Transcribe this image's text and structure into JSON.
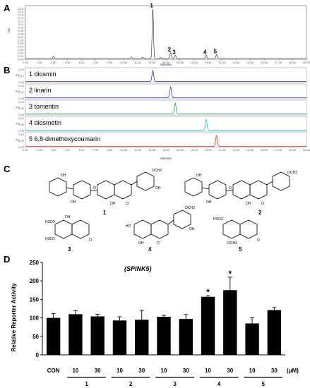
{
  "panels": {
    "a": "A",
    "b": "B",
    "c": "C",
    "d": "D"
  },
  "chromatogram": {
    "ylabel": "AU",
    "xlabel": "Minutes",
    "yticks": [
      "0.00",
      "0.01",
      "0.02",
      "0.03",
      "0.04",
      "0.05",
      "0.06",
      "0.07",
      "0.08",
      "0.09",
      "0.10",
      "0.11",
      "0.12",
      "0.13",
      "0.14",
      "0.15",
      "0.16"
    ],
    "xticks": [
      "0.00",
      "1.50",
      "3.00",
      "4.50",
      "6.00",
      "7.50",
      "9.00",
      "10.50",
      "12.00",
      "13.50",
      "15.00",
      "16.50",
      "18.00",
      "19.50",
      "21.00",
      "22.50",
      "24.00",
      "25.50",
      "27.00",
      "28.50",
      "30.00"
    ],
    "xlim": [
      0,
      30
    ],
    "ylim": [
      0,
      0.17
    ],
    "peaks": [
      {
        "label": "1",
        "x": 13.6,
        "y": 0.16
      },
      {
        "label": "2",
        "x": 15.5,
        "y": 0.02
      },
      {
        "label": "3",
        "x": 16.0,
        "y": 0.012
      },
      {
        "label": "4",
        "x": 19.3,
        "y": 0.012
      },
      {
        "label": "5",
        "x": 20.4,
        "y": 0.014
      }
    ],
    "minor_peaks": [
      {
        "x": 3.0,
        "y": 0.008
      },
      {
        "x": 11.3,
        "y": 0.006
      },
      {
        "x": 12.5,
        "y": 0.005
      },
      {
        "x": 14.4,
        "y": 0.004
      }
    ]
  },
  "standards": {
    "ylabel": "AU",
    "xlabel": "Minutes",
    "xticks": [
      "0.00",
      "1.50",
      "3.00",
      "4.50",
      "6.00",
      "7.50",
      "9.00",
      "10.50",
      "12.00",
      "13.50",
      "15.00",
      "16.50",
      "18.00",
      "19.50",
      "21.00",
      "22.50",
      "24.00",
      "25.50",
      "27.00",
      "28.50",
      "30.00"
    ],
    "traces": [
      {
        "label": "1 diosmin",
        "color": "#2f2fb0",
        "peak_x": 13.6,
        "yticks": [
          "0.00",
          "0.10",
          "0.20"
        ]
      },
      {
        "label": "2 linarin",
        "color": "#2d3fd4",
        "peak_x": 15.5,
        "yticks": [
          "0.00",
          "0.10",
          "0.20"
        ]
      },
      {
        "label": "3 tomentin",
        "color": "#22a83a",
        "peak_x": 16.0,
        "yticks": [
          "0.00",
          "0.02",
          "0.04"
        ]
      },
      {
        "label": "4 diosmetin",
        "color": "#19c3d1",
        "peak_x": 19.3,
        "yticks": [
          "0.00",
          "0.05",
          "0.10"
        ]
      },
      {
        "label": "5 6,8-dimethoxycoumarin",
        "color": "#e0282c",
        "peak_x": 20.4,
        "yticks": [
          "0.00",
          "0.05",
          "0.10"
        ]
      }
    ]
  },
  "structures": {
    "labels": [
      "1",
      "2",
      "3",
      "4",
      "5"
    ],
    "atoms": {
      "oh": "OH",
      "ho": "HO",
      "o": "O",
      "och3": "OCH3",
      "h3co": "H3CO"
    }
  },
  "chart_data": {
    "type": "bar",
    "title": "(SPINK5)",
    "ylabel": "Relative Reporter Activity",
    "ylim": [
      0,
      250
    ],
    "yticks": [
      0,
      50,
      100,
      150,
      200,
      250
    ],
    "categories": [
      "CON",
      "10",
      "30",
      "10",
      "30",
      "10",
      "30",
      "10",
      "30",
      "10",
      "30"
    ],
    "unit_label": "(μM)",
    "values": [
      100,
      110,
      104,
      93,
      95,
      103,
      97,
      157,
      175,
      85,
      121
    ],
    "errors": [
      12,
      10,
      6,
      10,
      25,
      4,
      12,
      3,
      35,
      15,
      7
    ],
    "significant": [
      false,
      false,
      false,
      false,
      false,
      false,
      false,
      true,
      true,
      false,
      false
    ],
    "significance_mark": "*",
    "groups": [
      {
        "label": "1",
        "bars": [
          1,
          2
        ]
      },
      {
        "label": "2",
        "bars": [
          3,
          4
        ]
      },
      {
        "label": "3",
        "bars": [
          5,
          6
        ]
      },
      {
        "label": "4",
        "bars": [
          7,
          8
        ]
      },
      {
        "label": "5",
        "bars": [
          9,
          10
        ]
      }
    ]
  }
}
